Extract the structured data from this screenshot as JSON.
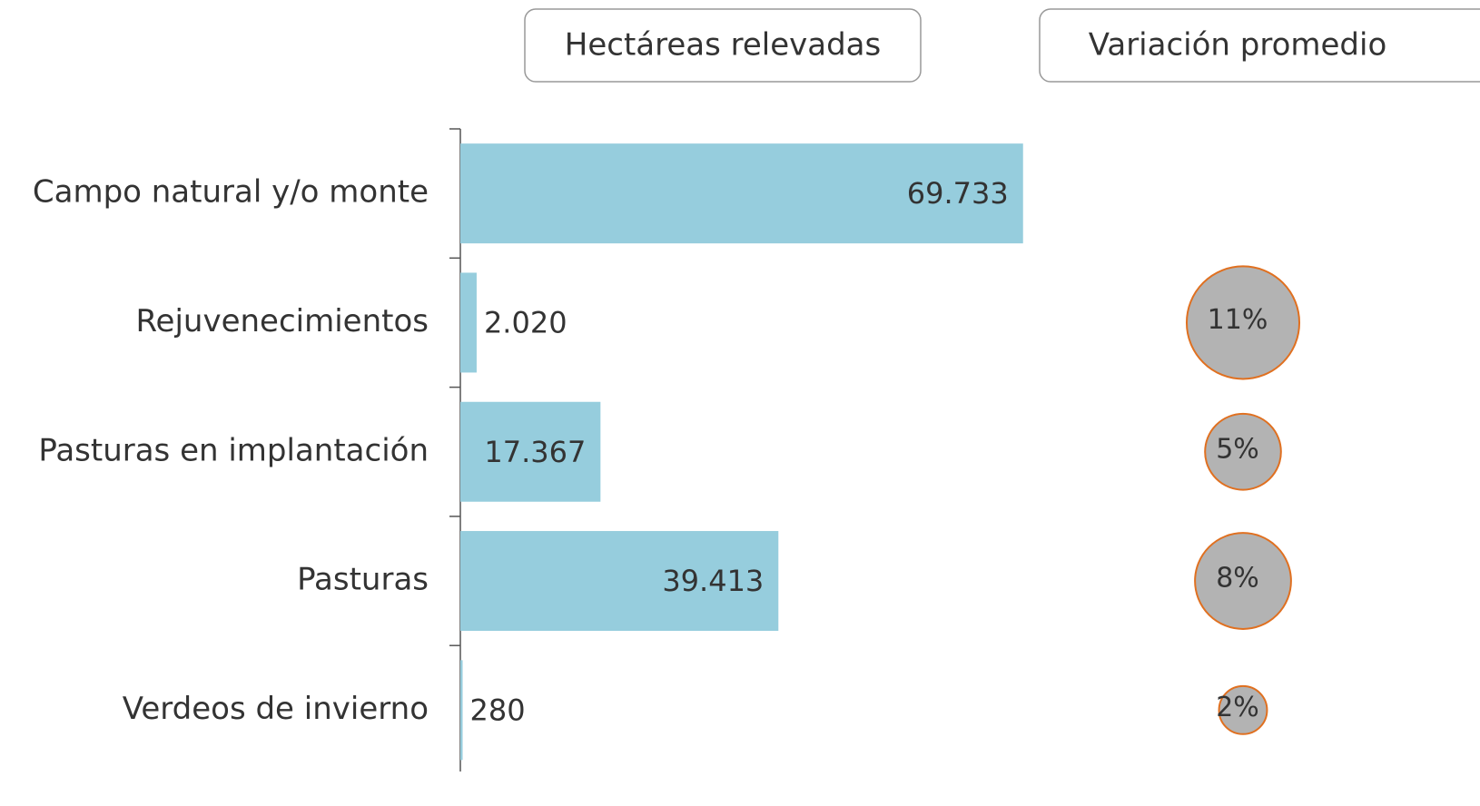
{
  "chart_data": {
    "type": "bar",
    "orientation": "horizontal",
    "categories": [
      "Campo natural y/o monte",
      "Rejuvenecimientos",
      "Pasturas en implantación",
      "Pasturas",
      "Verdeos de invierno"
    ],
    "xlim": [
      0,
      80000
    ],
    "series": [
      {
        "name": "Hectáreas relevadas",
        "color": "#96cddd",
        "values": [
          69733,
          2020,
          17367,
          39413,
          280
        ],
        "value_labels": [
          "69.733",
          "2.020",
          "17.367",
          "39.413",
          "280"
        ]
      },
      {
        "name": "Variación promedio",
        "type": "bubble",
        "color": "#b3b3b3",
        "edge_color": "#e07020",
        "values": [
          null,
          11,
          5,
          8,
          2
        ],
        "value_labels": [
          null,
          "11%",
          "5%",
          "8%",
          "2%"
        ]
      }
    ]
  }
}
